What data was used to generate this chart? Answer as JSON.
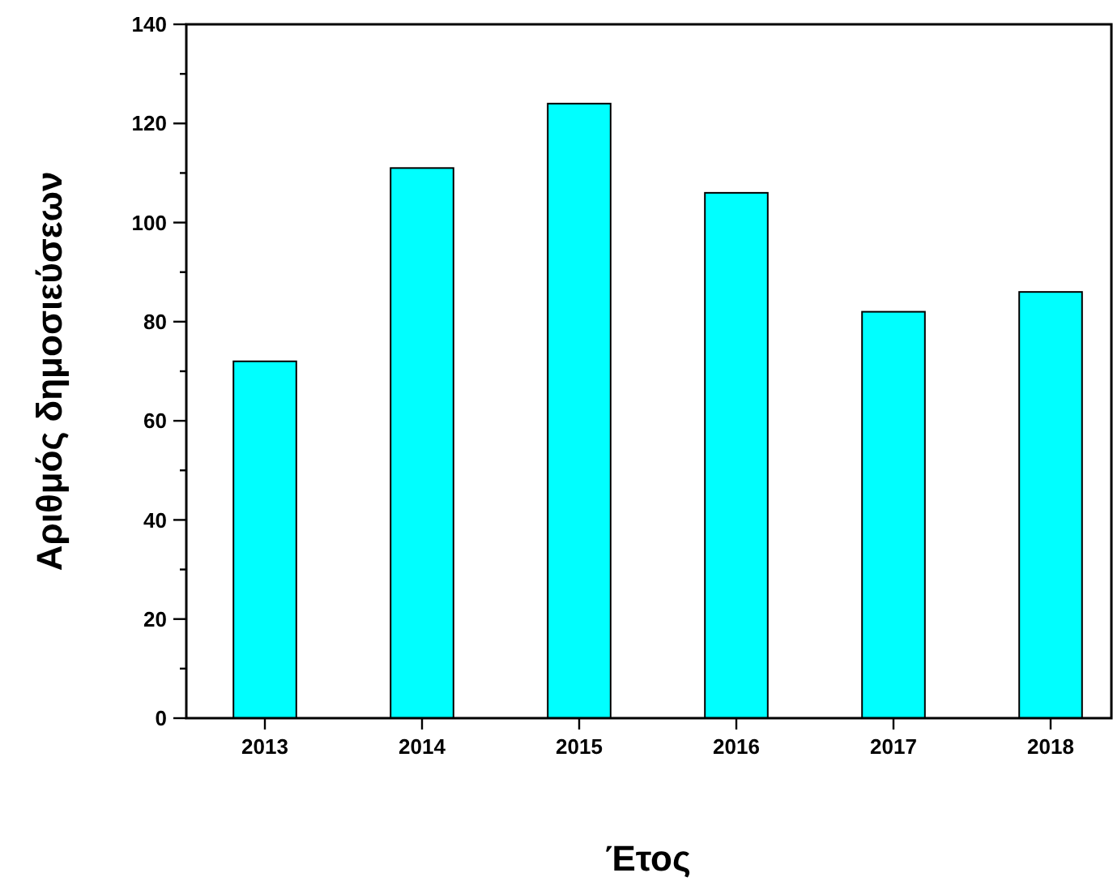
{
  "chart_data": {
    "type": "bar",
    "xlabel": "Έτος",
    "ylabel": "Αριθμός δημοσιεύσεων",
    "categories": [
      "2013",
      "2014",
      "2015",
      "2016",
      "2017",
      "2018"
    ],
    "values": [
      72,
      111,
      124,
      106,
      82,
      86
    ],
    "color": "#00ffff",
    "ylim": [
      0,
      140
    ],
    "yticks": [
      0,
      {
        "value": 10,
        "label": null
      },
      20,
      {
        "value": 30,
        "label": null
      },
      40,
      {
        "value": 50,
        "label": null
      },
      60,
      {
        "value": 70,
        "label": null
      },
      80,
      {
        "value": 90,
        "label": null
      },
      100,
      {
        "value": 110,
        "label": null
      },
      120,
      {
        "value": 130,
        "label": null
      },
      140
    ],
    "grid": false
  }
}
